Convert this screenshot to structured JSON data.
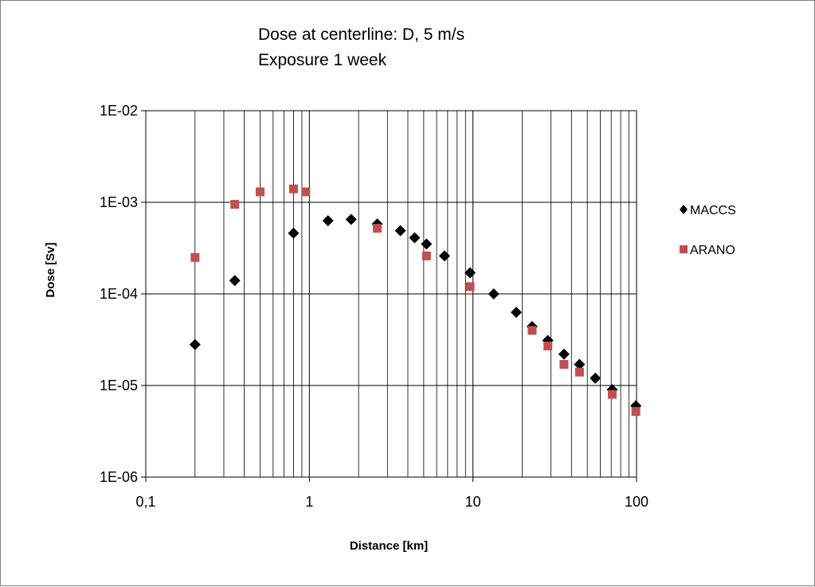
{
  "chart_data": {
    "type": "scatter",
    "title_lines": [
      "Dose at centerline: D, 5 m/s",
      "Exposure 1 week"
    ],
    "xlabel": "Distance [km]",
    "ylabel": "Dose [Sv]",
    "x_scale": "log",
    "y_scale": "log",
    "xlim": [
      0.1,
      100
    ],
    "ylim": [
      1e-06,
      0.01
    ],
    "x_tick_labels": [
      "0,1",
      "1",
      "10",
      "100"
    ],
    "y_tick_labels": [
      "1E-06",
      "1E-05",
      "1E-04",
      "1E-03",
      "1E-02"
    ],
    "grid": "vertical minor and major, horizontal major",
    "legend_position": "right",
    "series": [
      {
        "name": "MACCS",
        "marker": "diamond",
        "color": "#000000",
        "points": [
          {
            "x": 0.2,
            "y": 2.8e-05
          },
          {
            "x": 0.35,
            "y": 0.00014
          },
          {
            "x": 0.8,
            "y": 0.00046
          },
          {
            "x": 1.3,
            "y": 0.00063
          },
          {
            "x": 1.8,
            "y": 0.00065
          },
          {
            "x": 2.6,
            "y": 0.00058
          },
          {
            "x": 3.6,
            "y": 0.00049
          },
          {
            "x": 4.4,
            "y": 0.00041
          },
          {
            "x": 5.2,
            "y": 0.00035
          },
          {
            "x": 6.7,
            "y": 0.00026
          },
          {
            "x": 9.6,
            "y": 0.00017
          },
          {
            "x": 13.4,
            "y": 0.0001
          },
          {
            "x": 18.4,
            "y": 6.3e-05
          },
          {
            "x": 23.0,
            "y": 4.4e-05
          },
          {
            "x": 28.7,
            "y": 3.1e-05
          },
          {
            "x": 36.0,
            "y": 2.2e-05
          },
          {
            "x": 44.8,
            "y": 1.7e-05
          },
          {
            "x": 56.0,
            "y": 1.2e-05
          },
          {
            "x": 71.0,
            "y": 9e-06
          },
          {
            "x": 99.0,
            "y": 6e-06
          }
        ]
      },
      {
        "name": "ARANO",
        "marker": "square",
        "color": "#c0504d",
        "points": [
          {
            "x": 0.2,
            "y": 0.00025
          },
          {
            "x": 0.35,
            "y": 0.00095
          },
          {
            "x": 0.5,
            "y": 0.0013
          },
          {
            "x": 0.8,
            "y": 0.0014
          },
          {
            "x": 0.95,
            "y": 0.0013
          },
          {
            "x": 2.6,
            "y": 0.00052
          },
          {
            "x": 5.2,
            "y": 0.00026
          },
          {
            "x": 9.6,
            "y": 0.00012
          },
          {
            "x": 23.0,
            "y": 4e-05
          },
          {
            "x": 28.7,
            "y": 2.7e-05
          },
          {
            "x": 36.0,
            "y": 1.7e-05
          },
          {
            "x": 44.8,
            "y": 1.4e-05
          },
          {
            "x": 71.0,
            "y": 8e-06
          },
          {
            "x": 99.0,
            "y": 5.2e-06
          }
        ]
      }
    ]
  }
}
